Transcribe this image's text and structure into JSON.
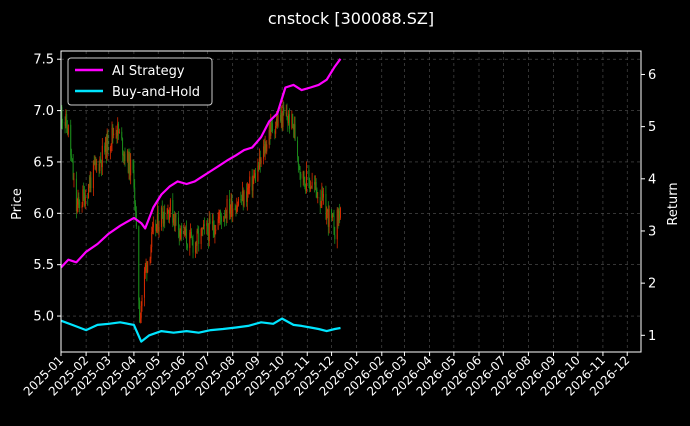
{
  "chart_data": {
    "type": "line",
    "title": "cnstock [300088.SZ]",
    "ylabel_left": "Price",
    "ylabel_right": "Return",
    "x_tick_labels": [
      "2025-01",
      "2025-02",
      "2025-03",
      "2025-04",
      "2025-05",
      "2025-06",
      "2025-07",
      "2025-08",
      "2025-09",
      "2025-10",
      "2025-11",
      "2025-12",
      "2026-01",
      "2026-02",
      "2026-03",
      "2026-04",
      "2026-05",
      "2026-06",
      "2026-07",
      "2026-08",
      "2026-09",
      "2026-10",
      "2026-11",
      "2026-12"
    ],
    "xlim": [
      "2025-01-01",
      "2026-12-18"
    ],
    "ylim_left": [
      4.65,
      7.58
    ],
    "ylim_right": [
      0.68,
      6.45
    ],
    "y_ticks_left": [
      "5.0",
      "5.5",
      "6.0",
      "6.5",
      "7.0",
      "7.5"
    ],
    "y_ticks_right": [
      "1",
      "2",
      "3",
      "4",
      "5",
      "6"
    ],
    "grid": true,
    "legend_position": "top-left",
    "colors": {
      "background": "#000000",
      "text": "#ffffff",
      "grid": "#555555",
      "ai_strategy": "#ff00ff",
      "buy_and_hold": "#00e5ff",
      "candle_up": "#d42a00",
      "candle_down": "#1a8a1a"
    },
    "price_series": {
      "name": "",
      "axis": "left",
      "x": [
        "2025-01-01",
        "2025-01-10",
        "2025-01-20",
        "2025-02-01",
        "2025-02-10",
        "2025-02-20",
        "2025-03-01",
        "2025-03-10",
        "2025-03-20",
        "2025-04-01",
        "2025-04-08",
        "2025-04-15",
        "2025-04-25",
        "2025-05-05",
        "2025-05-15",
        "2025-05-25",
        "2025-06-05",
        "2025-06-15",
        "2025-06-25",
        "2025-07-05",
        "2025-07-15",
        "2025-07-25",
        "2025-08-05",
        "2025-08-15",
        "2025-08-25",
        "2025-09-05",
        "2025-09-15",
        "2025-09-25",
        "2025-10-05",
        "2025-10-15",
        "2025-10-25",
        "2025-11-05",
        "2025-11-15",
        "2025-11-25",
        "2025-12-05",
        "2025-12-12"
      ],
      "values": [
        7.0,
        6.8,
        6.05,
        6.2,
        6.4,
        6.55,
        6.7,
        6.85,
        6.6,
        6.35,
        5.0,
        5.45,
        5.8,
        6.0,
        6.05,
        5.9,
        5.75,
        5.7,
        5.8,
        5.85,
        5.95,
        6.05,
        6.1,
        6.15,
        6.3,
        6.5,
        6.8,
        6.9,
        6.95,
        6.85,
        6.35,
        6.3,
        6.2,
        6.0,
        5.85,
        6.05
      ]
    },
    "series": [
      {
        "name": "AI Strategy",
        "axis": "right",
        "x": [
          "2025-01-01",
          "2025-01-10",
          "2025-01-20",
          "2025-02-01",
          "2025-02-15",
          "2025-03-01",
          "2025-03-15",
          "2025-04-01",
          "2025-04-10",
          "2025-04-15",
          "2025-04-25",
          "2025-05-05",
          "2025-05-15",
          "2025-05-25",
          "2025-06-05",
          "2025-06-15",
          "2025-06-25",
          "2025-07-05",
          "2025-07-15",
          "2025-07-25",
          "2025-08-05",
          "2025-08-15",
          "2025-08-25",
          "2025-09-05",
          "2025-09-15",
          "2025-09-25",
          "2025-10-05",
          "2025-10-15",
          "2025-10-25",
          "2025-11-05",
          "2025-11-15",
          "2025-11-25",
          "2025-12-05",
          "2025-12-12"
        ],
        "values": [
          2.3,
          2.45,
          2.4,
          2.6,
          2.75,
          2.95,
          3.1,
          3.25,
          3.15,
          3.05,
          3.45,
          3.7,
          3.85,
          3.95,
          3.9,
          3.95,
          4.05,
          4.15,
          4.25,
          4.35,
          4.45,
          4.55,
          4.6,
          4.8,
          5.1,
          5.25,
          5.75,
          5.8,
          5.7,
          5.75,
          5.8,
          5.9,
          6.15,
          6.3
        ]
      },
      {
        "name": "Buy-and-Hold",
        "axis": "right",
        "x": [
          "2025-01-01",
          "2025-01-15",
          "2025-02-01",
          "2025-02-15",
          "2025-03-01",
          "2025-03-15",
          "2025-04-01",
          "2025-04-10",
          "2025-04-20",
          "2025-05-05",
          "2025-05-20",
          "2025-06-05",
          "2025-06-20",
          "2025-07-05",
          "2025-07-20",
          "2025-08-05",
          "2025-08-20",
          "2025-09-05",
          "2025-09-20",
          "2025-10-01",
          "2025-10-15",
          "2025-10-25",
          "2025-11-05",
          "2025-11-15",
          "2025-11-25",
          "2025-12-05",
          "2025-12-12"
        ],
        "values": [
          1.28,
          1.2,
          1.1,
          1.2,
          1.22,
          1.25,
          1.2,
          0.88,
          1.0,
          1.08,
          1.05,
          1.08,
          1.05,
          1.1,
          1.12,
          1.15,
          1.18,
          1.25,
          1.22,
          1.32,
          1.2,
          1.18,
          1.15,
          1.12,
          1.08,
          1.12,
          1.14
        ]
      }
    ]
  }
}
